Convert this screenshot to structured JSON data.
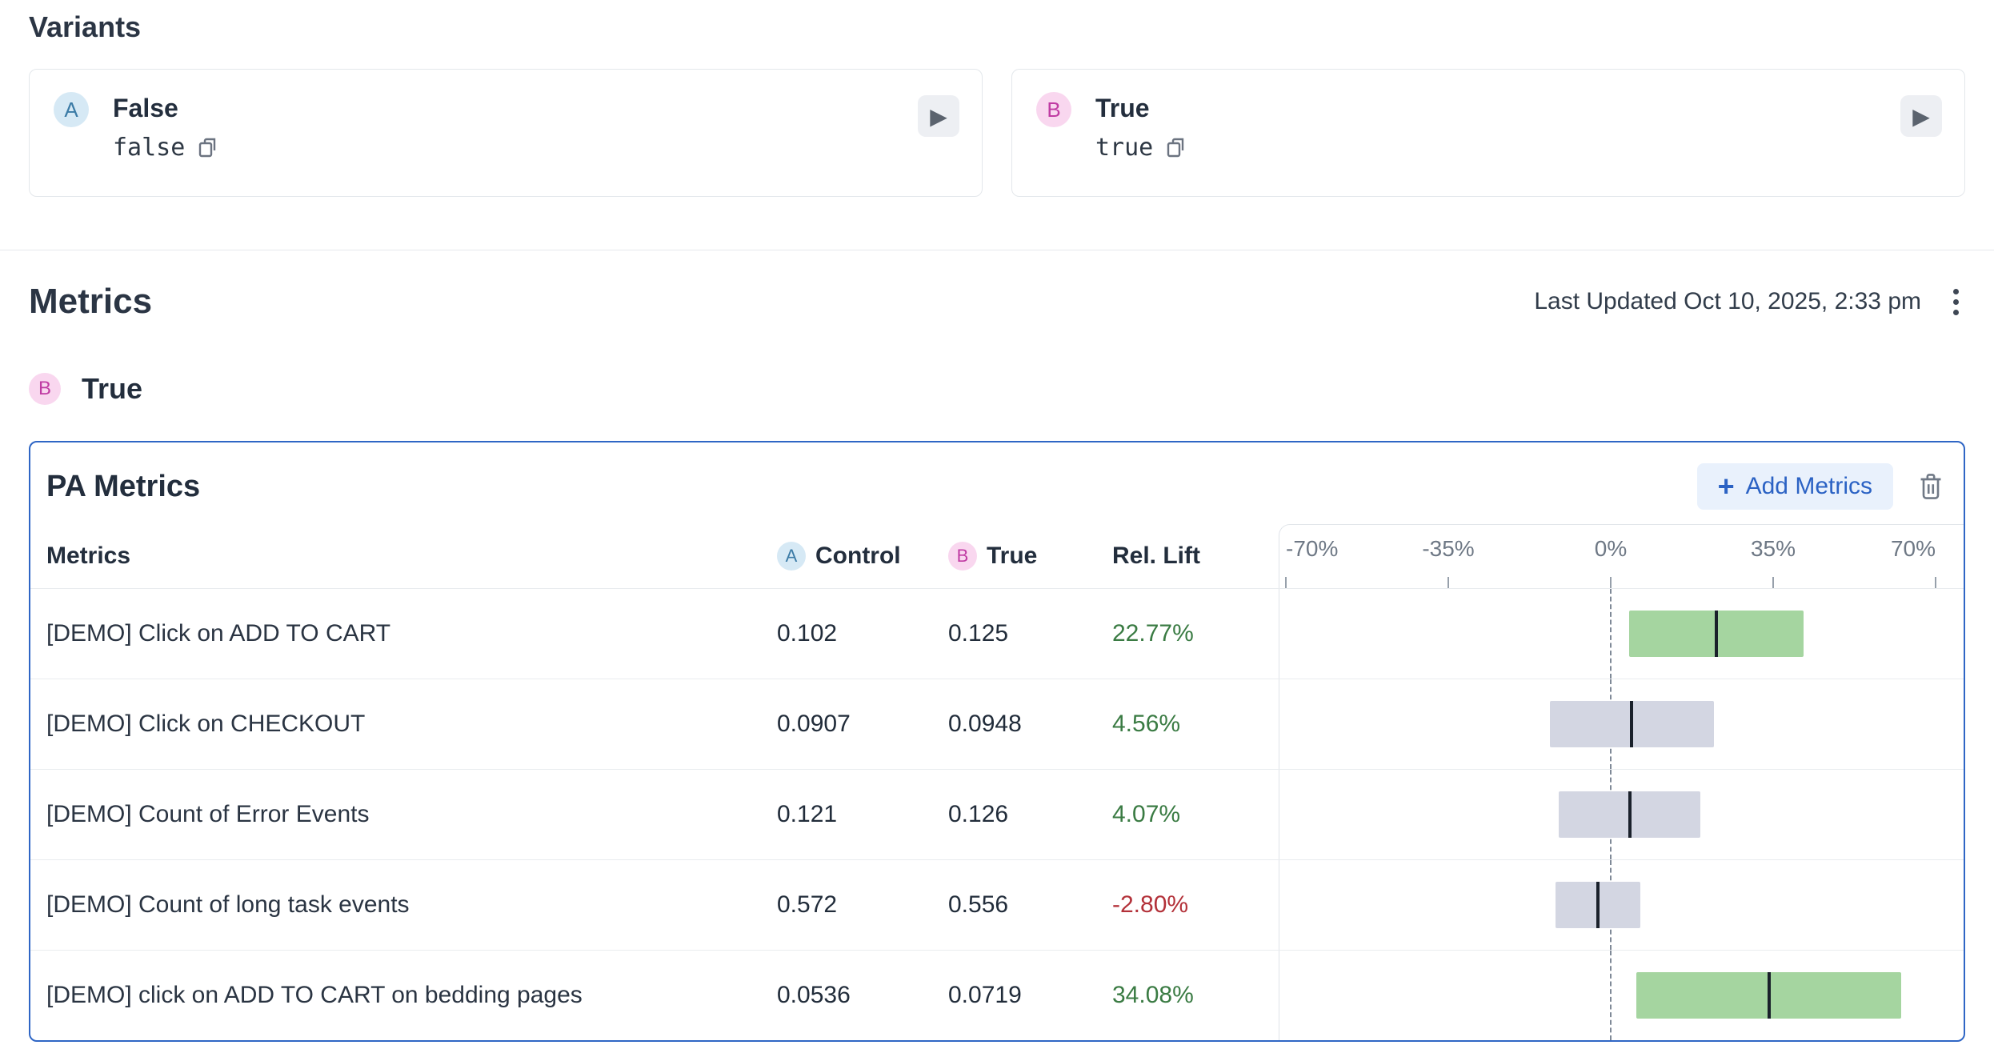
{
  "variants": {
    "heading": "Variants",
    "cards": [
      {
        "badge": "A",
        "name": "False",
        "value": "false"
      },
      {
        "badge": "B",
        "name": "True",
        "value": "true"
      }
    ]
  },
  "metrics": {
    "heading": "Metrics",
    "last_updated": "Last Updated Oct 10, 2025, 2:33 pm",
    "selected_variant": {
      "badge": "B",
      "name": "True"
    }
  },
  "panel": {
    "title": "PA Metrics",
    "add_metrics_label": "Add Metrics",
    "header": {
      "metrics": "Metrics",
      "control_badge": "A",
      "control_label": "Control",
      "treatment_badge": "B",
      "treatment_label": "True",
      "lift_label": "Rel. Lift"
    }
  },
  "chart_data": {
    "type": "table",
    "subtype": "forest-plot",
    "title": "PA Metrics",
    "columns": [
      "Metrics",
      "Control",
      "True",
      "Rel. Lift"
    ],
    "axis": {
      "min": -70,
      "max": 70,
      "tick_values": [
        -70,
        -35,
        0,
        35,
        70
      ],
      "tick_labels": [
        "-70%",
        "-35%",
        "0%",
        "35%",
        "70%"
      ],
      "zero_line": "dashed"
    },
    "rows": [
      {
        "metric": "[DEMO] Click on ADD TO CART",
        "control": "0.102",
        "treatment": "0.125",
        "lift": 22.77,
        "lift_label": "22.77%",
        "ci": [
          4.0,
          41.6
        ],
        "significant": true
      },
      {
        "metric": "[DEMO] Click on CHECKOUT",
        "control": "0.0907",
        "treatment": "0.0948",
        "lift": 4.56,
        "lift_label": "4.56%",
        "ci": [
          -13.1,
          22.2
        ],
        "significant": false
      },
      {
        "metric": "[DEMO] Count of Error Events",
        "control": "0.121",
        "treatment": "0.126",
        "lift": 4.07,
        "lift_label": "4.07%",
        "ci": [
          -11.2,
          19.3
        ],
        "significant": false
      },
      {
        "metric": "[DEMO] Count of long task events",
        "control": "0.572",
        "treatment": "0.556",
        "lift": -2.8,
        "lift_label": "-2.80%",
        "ci": [
          -11.9,
          6.3
        ],
        "significant": false
      },
      {
        "metric": "[DEMO] click on ADD TO CART on bedding pages",
        "control": "0.0536",
        "treatment": "0.0719",
        "lift": 34.08,
        "lift_label": "34.08%",
        "ci": [
          5.6,
          62.6
        ],
        "significant": true
      }
    ]
  },
  "icons": {
    "play": "▶",
    "plus": "+",
    "copy": "copy-icon",
    "trash": "trash-icon",
    "kebab": "kebab-menu-icon"
  },
  "colors": {
    "accent_blue": "#2f66c5",
    "add_button_bg": "#e9f1fc",
    "add_button_text": "#2b62c4",
    "badge_a_bg": "#d6e9f5",
    "badge_a_text": "#3b7ba6",
    "badge_b_bg": "#f9d7ef",
    "badge_b_text": "#c03ba3",
    "bar_significant": "#a5d5a0",
    "bar_neutral": "#d3d6e2",
    "lift_positive_text": "#3a7b43",
    "lift_negative_text": "#b33139"
  }
}
